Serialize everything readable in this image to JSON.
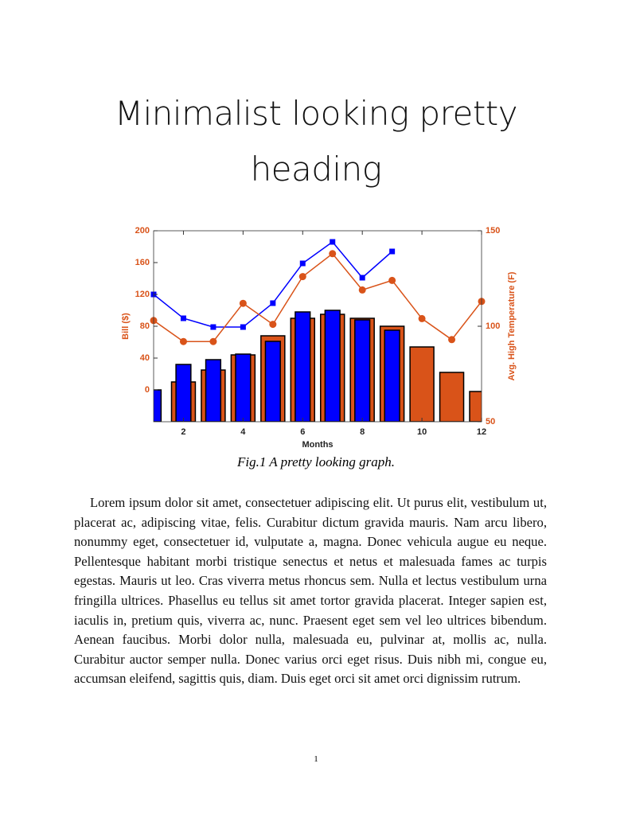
{
  "heading": "Minimalist looking pretty heading",
  "chart_data": {
    "type": "bar",
    "x_label": "Months",
    "y_label": "Bill ($)",
    "y2_label": "Avg. High Temperature (F)",
    "x": [
      1,
      2,
      3,
      4,
      5,
      6,
      7,
      8,
      9,
      10,
      11,
      12
    ],
    "xlim": [
      1,
      12
    ],
    "xticks": [
      2,
      4,
      6,
      8,
      10,
      12
    ],
    "ylim": [
      -40,
      200
    ],
    "yticks": [
      0,
      40,
      80,
      120,
      160,
      200
    ],
    "y2lim": [
      50,
      150
    ],
    "y2ticks": [
      50,
      100,
      150
    ],
    "axis_color": "#d95319",
    "series": [
      {
        "type": "bar",
        "color": "#d95319",
        "width": 0.8,
        "values": [
          null,
          10,
          25,
          44,
          68,
          90,
          95,
          90,
          80,
          54,
          22,
          -2
        ]
      },
      {
        "type": "bar",
        "color": "#0000ff",
        "width": 0.5,
        "values": [
          0,
          32,
          38,
          45,
          61,
          98,
          100,
          88,
          75,
          null,
          null,
          null
        ]
      },
      {
        "type": "line",
        "marker": "square",
        "color": "#0000ff",
        "values": [
          120,
          90,
          79,
          79,
          109,
          159,
          186,
          141,
          174,
          null,
          null,
          null
        ]
      },
      {
        "type": "line",
        "marker": "circle",
        "color": "#d95319",
        "axis": "y2",
        "values": [
          103,
          92,
          92,
          112,
          101,
          126,
          138,
          119,
          124,
          104,
          93,
          113
        ]
      }
    ]
  },
  "caption": "Fig.1 A pretty looking graph.",
  "body": "Lorem ipsum dolor sit amet, consectetuer adipiscing elit. Ut purus elit, vestibulum ut, placerat ac, adipiscing vitae, felis. Curabitur dictum gravida mauris. Nam arcu libero, nonummy eget, consectetuer id, vulputate a, magna. Donec vehicula augue eu neque. Pellentesque habitant morbi tristique senectus et netus et malesuada fames ac turpis egestas. Mauris ut leo. Cras viverra metus rhoncus sem. Nulla et lectus vestibulum urna fringilla ultrices. Phasellus eu tellus sit amet tortor gravida placerat. Integer sapien est, iaculis in, pretium quis, viverra ac, nunc. Praesent eget sem vel leo ultrices bibendum. Aenean faucibus. Morbi dolor nulla, malesuada eu, pulvinar at, mollis ac, nulla. Curabitur auctor semper nulla. Donec varius orci eget risus. Duis nibh mi, congue eu, accumsan eleifend, sagittis quis, diam. Duis eget orci sit amet orci dignissim rutrum.",
  "page_number": 1
}
